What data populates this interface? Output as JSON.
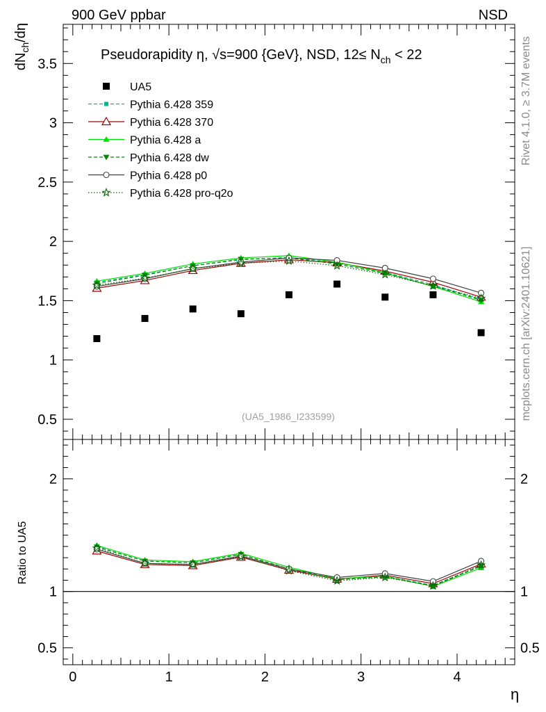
{
  "header": {
    "left": "900 GeV ppbar",
    "right": "NSD"
  },
  "side_labels": {
    "rivet": "Rivet 4.1.0, ≥ 3.7M events",
    "mcplots": "mcplots.cern.ch [arXiv:2401.10621]"
  },
  "colors": {
    "ua5": "#000000",
    "p359": "#00b38f",
    "p370": "#a00000",
    "pa": "#00e000",
    "pdw": "#008c00",
    "pp0": "#404040",
    "pq2o": "#006400"
  },
  "chart_data": [
    {
      "type": "line",
      "panel": "main",
      "title": "Pseudorapidity η, √s=900 {GeV}, NSD, 12≤ N_ch < 22",
      "title_parts": {
        "a": "Pseudorapidity ",
        "eta": "η",
        "b": ", ",
        "sqrt": "√",
        "c": "s=900 {GeV}, NSD, 12≤ N",
        "sub": "ch",
        "d": " < 22"
      },
      "ylabel": "dN_ch/dη",
      "ylabel_parts": {
        "a": "dN",
        "sub": "ch",
        "b": "/dη"
      },
      "watermark": "(UA5_1986_I233599)",
      "xlim": [
        -0.1,
        4.6
      ],
      "ylim": [
        0.33,
        3.83
      ],
      "yticks": [
        0.5,
        1,
        1.5,
        2,
        2.5,
        3,
        3.5
      ],
      "ytick_labels": [
        "0.5",
        "1",
        "1.5",
        "2",
        "2.5",
        "3",
        "3.5"
      ],
      "x": [
        0.25,
        0.75,
        1.25,
        1.75,
        2.25,
        2.75,
        3.25,
        3.75,
        4.25
      ],
      "series": [
        {
          "key": "ua5",
          "name": "UA5",
          "values": [
            1.18,
            1.35,
            1.43,
            1.39,
            1.55,
            1.64,
            1.53,
            1.55,
            1.23
          ]
        },
        {
          "key": "p359",
          "name": "Pythia 6.428 359",
          "values": [
            1.655,
            1.72,
            1.795,
            1.845,
            1.865,
            1.82,
            1.74,
            1.635,
            1.51
          ]
        },
        {
          "key": "p370",
          "name": "Pythia 6.428 370",
          "values": [
            1.605,
            1.67,
            1.755,
            1.815,
            1.845,
            1.82,
            1.75,
            1.655,
            1.53
          ]
        },
        {
          "key": "pa",
          "name": "Pythia 6.428 a",
          "values": [
            1.665,
            1.73,
            1.81,
            1.86,
            1.88,
            1.825,
            1.735,
            1.62,
            1.49
          ]
        },
        {
          "key": "pdw",
          "name": "Pythia 6.428 dw",
          "values": [
            1.645,
            1.715,
            1.795,
            1.85,
            1.86,
            1.81,
            1.73,
            1.625,
            1.505
          ]
        },
        {
          "key": "pp0",
          "name": "Pythia 6.428 p0",
          "values": [
            1.62,
            1.685,
            1.77,
            1.825,
            1.86,
            1.84,
            1.775,
            1.685,
            1.565
          ]
        },
        {
          "key": "pq2o",
          "name": "Pythia 6.428 pro-q2o",
          "values": [
            1.63,
            1.69,
            1.77,
            1.815,
            1.835,
            1.795,
            1.72,
            1.625,
            1.52
          ]
        }
      ]
    },
    {
      "type": "line",
      "panel": "ratio",
      "ylabel": "Ratio to UA5",
      "xlabel": "η",
      "xlim": [
        -0.1,
        4.6
      ],
      "ylim": [
        0.35,
        2.35
      ],
      "xticks": [
        0,
        1,
        2,
        3,
        4
      ],
      "xtick_labels": [
        "0",
        "1",
        "2",
        "3",
        "4"
      ],
      "yticks": [
        0.5,
        1,
        2
      ],
      "ytick_labels": [
        "0.5",
        "1",
        "2"
      ],
      "reference_line": 1,
      "x": [
        0.25,
        0.75,
        1.25,
        1.75,
        2.25,
        2.75,
        3.25,
        3.75,
        4.25
      ],
      "series": [
        {
          "key": "p359",
          "name": "Pythia 6.428 359",
          "values": [
            1.4,
            1.27,
            1.255,
            1.33,
            1.2,
            1.11,
            1.135,
            1.055,
            1.23
          ]
        },
        {
          "key": "p370",
          "name": "Pythia 6.428 370",
          "values": [
            1.36,
            1.24,
            1.23,
            1.305,
            1.19,
            1.11,
            1.145,
            1.07,
            1.245
          ]
        },
        {
          "key": "pa",
          "name": "Pythia 6.428 a",
          "values": [
            1.41,
            1.28,
            1.265,
            1.34,
            1.215,
            1.115,
            1.135,
            1.045,
            1.21
          ]
        },
        {
          "key": "pdw",
          "name": "Pythia 6.428 dw",
          "values": [
            1.395,
            1.27,
            1.255,
            1.33,
            1.2,
            1.105,
            1.13,
            1.05,
            1.225
          ]
        },
        {
          "key": "pp0",
          "name": "Pythia 6.428 p0",
          "values": [
            1.375,
            1.25,
            1.24,
            1.315,
            1.2,
            1.125,
            1.16,
            1.09,
            1.27
          ]
        },
        {
          "key": "pq2o",
          "name": "Pythia 6.428 pro-q2o",
          "values": [
            1.385,
            1.25,
            1.24,
            1.31,
            1.185,
            1.095,
            1.125,
            1.05,
            1.235
          ]
        }
      ]
    }
  ]
}
